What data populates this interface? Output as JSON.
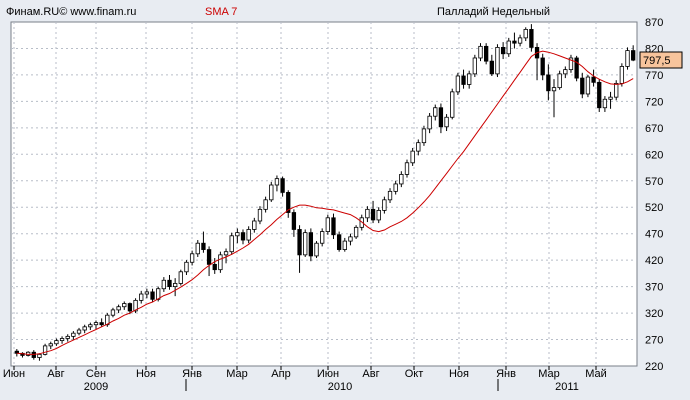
{
  "header": {
    "source": "Финам.RU© www.finam.ru",
    "indicator": "SMA 7",
    "title": "Палладий Недельный"
  },
  "colors": {
    "background": "#e8ecf2",
    "plot_area": "#ffffff",
    "up_candle": "#ffffff",
    "down_candle": "#000000",
    "sma_line": "#cc0000",
    "indicator_text": "#cc0000",
    "price_tag": "#f7c49c"
  },
  "price_tag": "797,5",
  "chart_data": {
    "type": "candlestick",
    "title": "Палладий Недельный",
    "interval": "weekly",
    "ylim": [
      220,
      870
    ],
    "y_ticks": [
      220,
      270,
      320,
      370,
      420,
      470,
      520,
      570,
      620,
      670,
      720,
      770,
      820,
      870
    ],
    "x_month_labels": [
      "Июн",
      "Авг",
      "Сен",
      "Ноя",
      "Янв",
      "Мар",
      "Апр",
      "Июн",
      "Авг",
      "Окт",
      "Ноя",
      "Янв",
      "Мар",
      "Май"
    ],
    "x_year_labels": [
      "2009",
      "2010",
      "2011"
    ],
    "grid": true,
    "last_price": 797.5,
    "series": [
      {
        "kind": "ohlc",
        "ohlc": [
          [
            248,
            252,
            238,
            244
          ],
          [
            244,
            246,
            236,
            240
          ],
          [
            240,
            248,
            238,
            246
          ],
          [
            246,
            250,
            232,
            236
          ],
          [
            236,
            244,
            230,
            242
          ],
          [
            242,
            262,
            240,
            258
          ],
          [
            258,
            266,
            252,
            262
          ],
          [
            262,
            272,
            258,
            268
          ],
          [
            268,
            276,
            262,
            272
          ],
          [
            272,
            280,
            266,
            276
          ],
          [
            276,
            286,
            270,
            282
          ],
          [
            282,
            292,
            278,
            288
          ],
          [
            288,
            298,
            282,
            294
          ],
          [
            294,
            302,
            288,
            298
          ],
          [
            298,
            306,
            290,
            302
          ],
          [
            302,
            310,
            294,
            298
          ],
          [
            298,
            320,
            294,
            316
          ],
          [
            316,
            330,
            312,
            326
          ],
          [
            326,
            336,
            320,
            332
          ],
          [
            332,
            342,
            326,
            338
          ],
          [
            338,
            340,
            318,
            324
          ],
          [
            324,
            348,
            320,
            344
          ],
          [
            344,
            362,
            338,
            356
          ],
          [
            356,
            366,
            348,
            360
          ],
          [
            360,
            366,
            340,
            346
          ],
          [
            346,
            370,
            342,
            366
          ],
          [
            366,
            388,
            360,
            382
          ],
          [
            382,
            392,
            364,
            370
          ],
          [
            370,
            386,
            352,
            376
          ],
          [
            376,
            402,
            372,
            398
          ],
          [
            398,
            420,
            392,
            416
          ],
          [
            416,
            438,
            410,
            432
          ],
          [
            432,
            458,
            426,
            452
          ],
          [
            452,
            474,
            434,
            440
          ],
          [
            440,
            446,
            390,
            412
          ],
          [
            412,
            424,
            394,
            402
          ],
          [
            402,
            436,
            396,
            430
          ],
          [
            430,
            442,
            414,
            436
          ],
          [
            436,
            472,
            430,
            466
          ],
          [
            466,
            480,
            452,
            472
          ],
          [
            472,
            478,
            450,
            458
          ],
          [
            458,
            484,
            452,
            478
          ],
          [
            478,
            500,
            472,
            494
          ],
          [
            494,
            522,
            488,
            516
          ],
          [
            516,
            540,
            510,
            534
          ],
          [
            534,
            568,
            530,
            562
          ],
          [
            562,
            580,
            550,
            574
          ],
          [
            574,
            578,
            540,
            548
          ],
          [
            548,
            552,
            500,
            510
          ],
          [
            510,
            516,
            464,
            478
          ],
          [
            478,
            486,
            396,
            430
          ],
          [
            430,
            478,
            426,
            472
          ],
          [
            472,
            480,
            418,
            428
          ],
          [
            428,
            456,
            424,
            452
          ],
          [
            452,
            480,
            446,
            474
          ],
          [
            474,
            506,
            468,
            500
          ],
          [
            500,
            508,
            460,
            468
          ],
          [
            468,
            474,
            436,
            440
          ],
          [
            440,
            462,
            436,
            456
          ],
          [
            456,
            470,
            448,
            464
          ],
          [
            464,
            486,
            460,
            482
          ],
          [
            482,
            506,
            476,
            500
          ],
          [
            500,
            522,
            492,
            516
          ],
          [
            516,
            532,
            490,
            496
          ],
          [
            496,
            520,
            490,
            514
          ],
          [
            514,
            540,
            508,
            534
          ],
          [
            534,
            556,
            528,
            550
          ],
          [
            550,
            570,
            544,
            564
          ],
          [
            564,
            588,
            558,
            582
          ],
          [
            582,
            610,
            576,
            604
          ],
          [
            604,
            632,
            598,
            626
          ],
          [
            626,
            648,
            618,
            642
          ],
          [
            642,
            674,
            636,
            668
          ],
          [
            668,
            698,
            660,
            692
          ],
          [
            692,
            714,
            684,
            708
          ],
          [
            708,
            716,
            660,
            672
          ],
          [
            672,
            696,
            664,
            690
          ],
          [
            690,
            744,
            686,
            738
          ],
          [
            738,
            774,
            732,
            768
          ],
          [
            768,
            780,
            744,
            752
          ],
          [
            752,
            778,
            744,
            772
          ],
          [
            772,
            808,
            766,
            802
          ],
          [
            802,
            830,
            796,
            824
          ],
          [
            824,
            830,
            790,
            796
          ],
          [
            796,
            808,
            768,
            772
          ],
          [
            772,
            828,
            766,
            822
          ],
          [
            822,
            832,
            800,
            810
          ],
          [
            810,
            840,
            804,
            834
          ],
          [
            834,
            850,
            820,
            830
          ],
          [
            830,
            846,
            824,
            840
          ],
          [
            840,
            860,
            834,
            856
          ],
          [
            856,
            866,
            814,
            822
          ],
          [
            822,
            830,
            760,
            802
          ],
          [
            802,
            810,
            760,
            770
          ],
          [
            770,
            790,
            722,
            740
          ],
          [
            740,
            762,
            690,
            746
          ],
          [
            746,
            778,
            742,
            772
          ],
          [
            772,
            786,
            764,
            780
          ],
          [
            780,
            808,
            774,
            802
          ],
          [
            802,
            806,
            758,
            764
          ],
          [
            764,
            774,
            726,
            734
          ],
          [
            734,
            770,
            728,
            766
          ],
          [
            766,
            780,
            748,
            756
          ],
          [
            756,
            762,
            700,
            708
          ],
          [
            708,
            730,
            700,
            724
          ],
          [
            724,
            738,
            706,
            728
          ],
          [
            728,
            760,
            722,
            754
          ],
          [
            754,
            792,
            748,
            786
          ],
          [
            786,
            822,
            780,
            816
          ],
          [
            816,
            826,
            796,
            798
          ]
        ]
      },
      {
        "name": "SMA 7",
        "kind": "line",
        "values": [
          244,
          243,
          242,
          242,
          243,
          246,
          249,
          253,
          259,
          264,
          269,
          274,
          279,
          284,
          289,
          294,
          299,
          305,
          310,
          316,
          320,
          326,
          331,
          337,
          341,
          347,
          353,
          357,
          363,
          369,
          376,
          383,
          392,
          402,
          410,
          417,
          422,
          426,
          431,
          437,
          443,
          450,
          459,
          468,
          478,
          487,
          497,
          506,
          515,
          520,
          524,
          524,
          522,
          519,
          518,
          516,
          515,
          512,
          509,
          506,
          500,
          492,
          483,
          476,
          474,
          477,
          483,
          488,
          493,
          500,
          509,
          519,
          530,
          542,
          556,
          570,
          584,
          598,
          612,
          625,
          640,
          655,
          670,
          685,
          700,
          715,
          730,
          745,
          760,
          775,
          790,
          805,
          812,
          815,
          813,
          810,
          806,
          802,
          798,
          794,
          786,
          776,
          768,
          762,
          757,
          753,
          752,
          753,
          757,
          763
        ]
      }
    ]
  }
}
